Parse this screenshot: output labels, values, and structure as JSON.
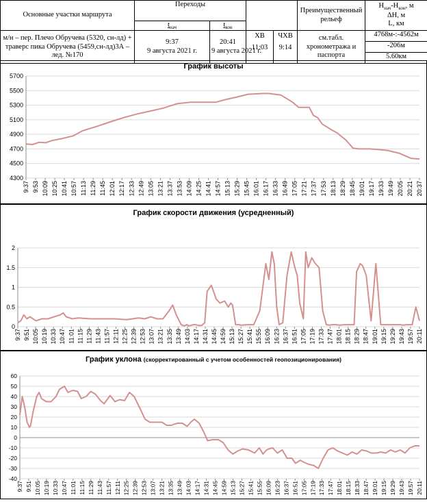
{
  "header": {
    "col1_title": "Основные участки маршрута",
    "col2_title": "Переходы",
    "t_start_label": "t",
    "t_start_sub": "нач",
    "t_end_label": "t",
    "t_end_sub": "кон",
    "hv_label": "ХВ",
    "chv_label": "ЧХВ",
    "col_relief_title": "Преимущественный рельеф",
    "col_last_line1": "H",
    "col_last_line1_sub1": "нач",
    "col_last_line1_mid": "-H",
    "col_last_line1_sub2": "кон",
    "col_last_line1_end": ", м",
    "col_last_line2": "ΔH, м",
    "col_last_line3": "L, км",
    "route": "м/н – пер. Плечо Обручева (5320, сн-лд) + траверс пика Обручева (5459,сн-лд)3А – лед. №170",
    "t_start_time": "9:37",
    "t_start_date": "9 августа 2021 г.",
    "t_end_time": "20:41",
    "t_end_date": "9 августа 2021 г.",
    "hv_value": "11:03",
    "chv_value": "9:14",
    "relief": "см.табл. хронометража и паспорта",
    "h_range": "4768м-:-4562м",
    "dh": "-206м",
    "length": "5.60км"
  },
  "chart_data": [
    {
      "type": "line",
      "title": "График высоты",
      "ylim": [
        4300,
        5700
      ],
      "yticks": [
        4300,
        4500,
        4700,
        4900,
        5100,
        5300,
        5500,
        5700
      ],
      "xtick_labels": [
        "9:37",
        "9:53",
        "10:09",
        "10:25",
        "10:41",
        "10:57",
        "11:13",
        "11:29",
        "11:45",
        "12:01",
        "12:17",
        "12:33",
        "12:49",
        "13:05",
        "13:21",
        "13:37",
        "13:53",
        "14:09",
        "14:25",
        "14:41",
        "14:57",
        "15:13",
        "15:29",
        "15:45",
        "16:01",
        "16:17",
        "16:33",
        "16:49",
        "17:05",
        "17:21",
        "17:37",
        "17:53",
        "18:13",
        "18:29",
        "18:45",
        "19:01",
        "19:17",
        "19:33",
        "19:49",
        "20:05",
        "20:21",
        "20:37"
      ],
      "x_minutes": [
        0,
        11,
        22,
        33,
        44,
        60,
        80,
        96,
        120,
        142,
        165,
        188,
        210,
        232,
        255,
        278,
        300,
        320,
        338,
        355,
        375,
        400,
        410,
        430,
        450,
        460,
        478,
        485,
        492,
        500,
        516,
        525,
        540,
        552,
        562,
        572,
        580,
        596,
        610,
        630,
        650,
        664
      ],
      "values": [
        4768,
        4760,
        4790,
        4785,
        4815,
        4840,
        4880,
        4950,
        5010,
        5070,
        5130,
        5180,
        5220,
        5260,
        5320,
        5340,
        5340,
        5340,
        5380,
        5410,
        5450,
        5460,
        5460,
        5440,
        5340,
        5270,
        5270,
        5160,
        5130,
        5040,
        4960,
        4920,
        4820,
        4710,
        4700,
        4700,
        4700,
        4690,
        4680,
        4640,
        4570,
        4562
      ],
      "grid": true
    },
    {
      "type": "line",
      "title": "График скорости движения (усредненный)",
      "ylim": [
        0,
        2
      ],
      "yticks": [
        0,
        0.5,
        1,
        1.5,
        2
      ],
      "xtick_labels": [
        "9:37",
        "9:51",
        "10:05",
        "10:19",
        "10:33",
        "10:47",
        "11:01",
        "11:15",
        "11:29",
        "11:43",
        "11:57",
        "12:11",
        "12:25",
        "12:39",
        "12:53",
        "13:07",
        "13:21",
        "13:35",
        "13:49",
        "14:03",
        "14:17",
        "14:31",
        "14:45",
        "14:59",
        "15:13",
        "15:27",
        "15:41",
        "15:55",
        "16:09",
        "16:23",
        "16:37",
        "16:51",
        "17:05",
        "17:19",
        "17:33",
        "17:47",
        "18:01",
        "18:15",
        "18:29",
        "18:47",
        "19:01",
        "19:15",
        "19:29",
        "19:43",
        "19:57",
        "20:11"
      ],
      "x_minutes": [
        0,
        5,
        10,
        15,
        20,
        30,
        40,
        50,
        60,
        70,
        75,
        80,
        90,
        100,
        120,
        140,
        160,
        180,
        190,
        200,
        210,
        220,
        230,
        240,
        250,
        256,
        262,
        270,
        275,
        280,
        282,
        286,
        290,
        294,
        300,
        304,
        309,
        313,
        320,
        328,
        334,
        342,
        348,
        352,
        355,
        360,
        365,
        370,
        380,
        390,
        400,
        410,
        415,
        420,
        424,
        428,
        432,
        438,
        445,
        452,
        458,
        462,
        466,
        472,
        476,
        480,
        486,
        492,
        498,
        504,
        510,
        516,
        520,
        526,
        532,
        540,
        548,
        556,
        560,
        566,
        570,
        576,
        584,
        592,
        600,
        604,
        612,
        620,
        626,
        632,
        637,
        642,
        647,
        652,
        658,
        664
      ],
      "values": [
        0.1,
        0.15,
        0.3,
        0.2,
        0.25,
        0.15,
        0.2,
        0.2,
        0.25,
        0.3,
        0.35,
        0.25,
        0.2,
        0.22,
        0.2,
        0.2,
        0.2,
        0.18,
        0.2,
        0.22,
        0.2,
        0.25,
        0.2,
        0.2,
        0.4,
        0.55,
        0.3,
        0.05,
        0.02,
        0.05,
        0.02,
        0.03,
        0.05,
        0.05,
        0.03,
        0.03,
        0.1,
        0.9,
        1.05,
        0.7,
        0.6,
        0.65,
        0.5,
        0.6,
        0.55,
        0.05,
        0.05,
        0.04,
        0.05,
        0.05,
        0.4,
        1.6,
        1.2,
        1.9,
        1.6,
        0.5,
        0.05,
        0.1,
        1.3,
        1.9,
        1.5,
        1.3,
        0.6,
        0.2,
        1.9,
        1.5,
        1.75,
        1.6,
        1.5,
        0.4,
        0.05,
        0.04,
        0.05,
        0.05,
        0.04,
        0.05,
        0.05,
        0.05,
        1.4,
        1.6,
        1.55,
        1.3,
        0.15,
        1.6,
        0.05,
        0.05,
        0.05,
        0.05,
        0.05,
        0.05,
        0.04,
        0.05,
        0.05,
        0.05,
        0.5,
        0.15
      ]
    },
    {
      "type": "line",
      "title": "График уклона",
      "title_note": "(скорректированный  с учетом  особенностей  геопозиционирования)",
      "ylim": [
        -40,
        60
      ],
      "yticks": [
        -40,
        -30,
        -20,
        -10,
        0,
        10,
        20,
        30,
        40,
        50,
        60
      ],
      "xtick_labels": [
        "9:37",
        "9:51",
        "10:05",
        "10:19",
        "10:33",
        "10:47",
        "11:01",
        "11:15",
        "11:29",
        "11:43",
        "11:57",
        "12:11",
        "12:25",
        "12:39",
        "12:53",
        "13:07",
        "13:21",
        "13:35",
        "13:49",
        "14:03",
        "14:17",
        "14:31",
        "14:45",
        "14:59",
        "15:13",
        "15:27",
        "15:41",
        "15:55",
        "16:09",
        "16:23",
        "16:37",
        "16:51",
        "17:05",
        "17:19",
        "17:33",
        "17:47",
        "18:01",
        "18:15",
        "18:33",
        "18:47",
        "19:01",
        "19:15",
        "19:29",
        "19:43",
        "19:57",
        "20:11"
      ],
      "x_minutes": [
        0,
        4,
        8,
        12,
        16,
        18,
        22,
        28,
        32,
        36,
        44,
        52,
        60,
        66,
        74,
        80,
        88,
        96,
        102,
        110,
        118,
        126,
        134,
        140,
        150,
        158,
        166,
        174,
        182,
        190,
        200,
        208,
        216,
        222,
        230,
        236,
        244,
        252,
        256,
        262,
        270,
        278,
        284,
        290,
        298,
        306,
        312,
        320,
        330,
        338,
        346,
        354,
        362,
        370,
        380,
        390,
        398,
        404,
        410,
        414,
        420,
        428,
        436,
        444,
        452,
        458,
        466,
        472,
        480,
        488,
        496,
        504,
        512,
        520,
        528,
        536,
        544,
        552,
        560,
        568,
        576,
        584,
        592,
        600,
        608,
        616,
        624,
        632,
        640,
        648,
        656,
        664
      ],
      "values": [
        22,
        40,
        30,
        15,
        10,
        12,
        25,
        40,
        44,
        38,
        35,
        35,
        40,
        47,
        50,
        44,
        46,
        45,
        38,
        40,
        45,
        42,
        36,
        33,
        41,
        35,
        37,
        36,
        44,
        40,
        28,
        18,
        15,
        15,
        15,
        15,
        12,
        12,
        13,
        14,
        14,
        11,
        15,
        18,
        14,
        5,
        -3,
        -2,
        -2,
        -5,
        -12,
        -16,
        -13,
        -11,
        -12,
        -15,
        -10,
        -16,
        -12,
        -11,
        -10,
        -15,
        -12,
        -20,
        -20,
        -25,
        -22,
        -24,
        -26,
        -27,
        -30,
        -20,
        -12,
        -10,
        -13,
        -15,
        -17,
        -14,
        -16,
        -12,
        -13,
        -15,
        -15,
        -14,
        -15,
        -12,
        -14,
        -12,
        -15,
        -10,
        -8,
        -8
      ]
    }
  ]
}
